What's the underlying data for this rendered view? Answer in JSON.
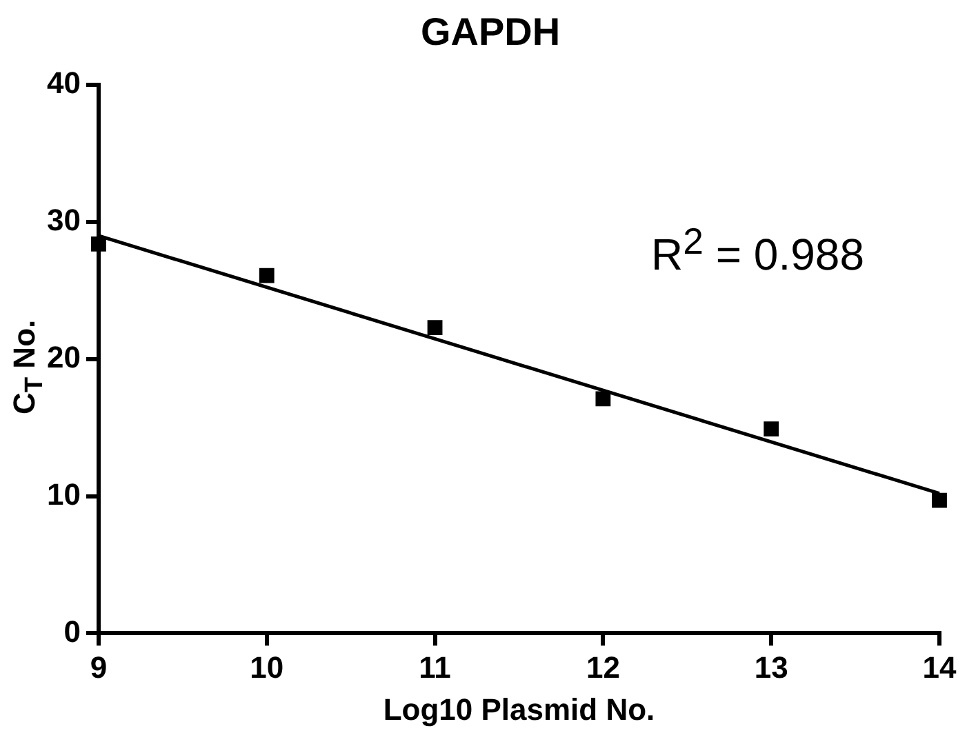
{
  "chart_data": {
    "type": "scatter",
    "title": "GAPDH",
    "xlabel": "Log10 Plasmid No.",
    "ylabel": "C$_{T}$ No.",
    "annotations": [
      "R$^{2}$ = 0.988"
    ],
    "x": [
      9,
      10,
      11,
      12,
      13,
      14
    ],
    "series": [
      {
        "type": "scatter",
        "color": "#000000",
        "marker": "square",
        "values": [
          28.4,
          26.1,
          22.3,
          17.1,
          14.9,
          9.7
        ]
      },
      {
        "type": "line",
        "color": "#000000",
        "marker": "none",
        "line_style": "solid",
        "x": [
          9,
          14
        ],
        "values": [
          29.0,
          10.2
        ]
      }
    ],
    "xlim": [
      9,
      14
    ],
    "xticks": [
      9,
      10,
      11,
      12,
      13,
      14
    ],
    "ylim": [
      0,
      40
    ],
    "yticks": [
      0,
      10,
      20,
      30,
      40
    ],
    "grid": false,
    "legend": false
  }
}
